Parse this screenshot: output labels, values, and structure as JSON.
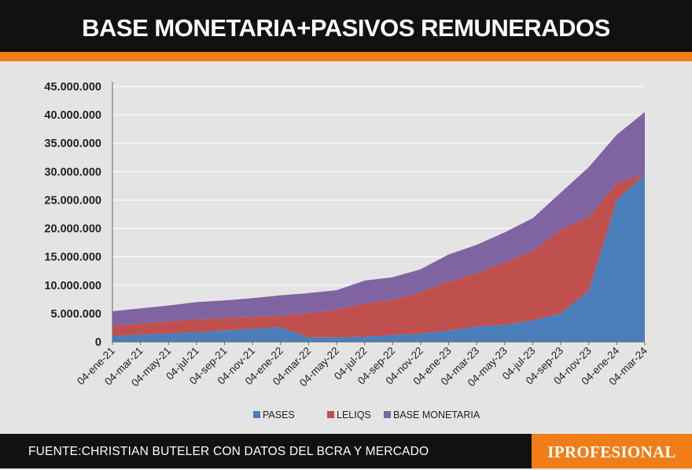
{
  "header": {
    "title": "BASE MONETARIA+PASIVOS REMUNERADOS"
  },
  "footer": {
    "source": "FUENTE:CHRISTIAN BUTELER CON DATOS DEL BCRA Y MERCADO",
    "brand": "IPROFESIONAL"
  },
  "colors": {
    "pases": "#4a7ebb",
    "leliqs": "#c0504d",
    "base": "#8064a2",
    "accent": "#f07d18",
    "dark": "#111111"
  },
  "chart_data": {
    "type": "area",
    "stacked": true,
    "title": "BASE MONETARIA+PASIVOS REMUNERADOS",
    "xlabel": "",
    "ylabel": "",
    "ylim": [
      0,
      45000000
    ],
    "yticks": [
      0,
      5000000,
      10000000,
      15000000,
      20000000,
      25000000,
      30000000,
      35000000,
      40000000,
      45000000
    ],
    "ytick_labels": [
      "0",
      "5.000.000",
      "10.000.000",
      "15.000.000",
      "20.000.000",
      "25.000.000",
      "30.000.000",
      "35.000.000",
      "40.000.000",
      "45.000.000"
    ],
    "grid": "horizontal",
    "legend_position": "bottom",
    "categories": [
      "04-ene-21",
      "04-mar-21",
      "04-may-21",
      "04-jul-21",
      "04-sep-21",
      "04-nov-21",
      "04-ene-22",
      "04-mar-22",
      "04-may-22",
      "04-jul-22",
      "04-sep-22",
      "04-nov-22",
      "04-ene-23",
      "04-mar-23",
      "04-may-23",
      "04-jul-23",
      "04-sep-23",
      "04-nov-23",
      "04-ene-24",
      "04-mar-24"
    ],
    "series": [
      {
        "name": "PASES",
        "values": [
          1000000,
          1300000,
          1500000,
          1700000,
          2000000,
          2300000,
          2600000,
          800000,
          800000,
          900000,
          1200000,
          1500000,
          2000000,
          2700000,
          3000000,
          3800000,
          5000000,
          9000000,
          25000000,
          29500000
        ]
      },
      {
        "name": "LELIQS",
        "values": [
          1800000,
          1900000,
          2100000,
          2300000,
          2200000,
          2100000,
          2000000,
          4300000,
          4900000,
          5900000,
          6200000,
          7300000,
          8600000,
          9400000,
          11000000,
          12200000,
          14800000,
          13000000,
          3000000,
          0
        ]
      },
      {
        "name": "BASE MONETARIA",
        "values": [
          2600000,
          2700000,
          2800000,
          3000000,
          3100000,
          3300000,
          3600000,
          3500000,
          3400000,
          4000000,
          4000000,
          4000000,
          4800000,
          5000000,
          5300000,
          5800000,
          6500000,
          8800000,
          8500000,
          11000000
        ]
      }
    ]
  }
}
